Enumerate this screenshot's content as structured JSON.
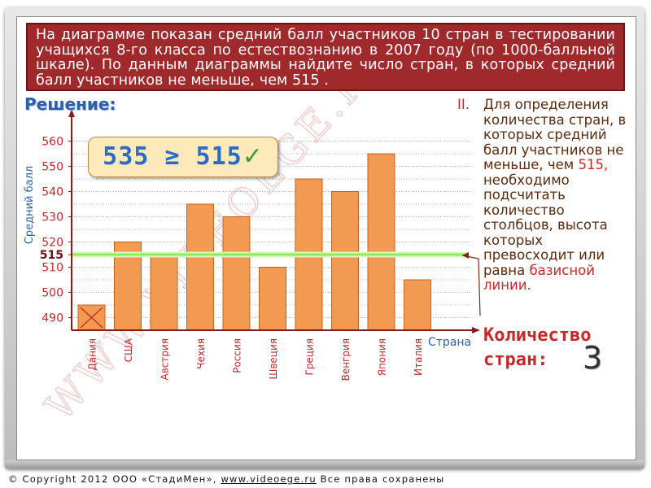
{
  "problem": {
    "text": "На диаграмме показан средний балл участников 10 стран в тестировании учащихся 8-го класса по естествознанию в 2007 году (по 1000-балльной шкале). По данным диаграммы найдите число стран, в которых средний балл участников не меньше, чем 515 ."
  },
  "solution": {
    "title": "Решение:",
    "callout_left": "535",
    "callout_op": "≥",
    "callout_right": "515",
    "callout_check": "✓"
  },
  "explanation": {
    "number": "II.",
    "part1": "Для определения количества стран, в которых средний балл участников не меньше, чем",
    "highlight1": "515,",
    "part2": "необходимо подсчитать количество столбцов, высота которых превосходит или равна",
    "highlight2": "базисной линии."
  },
  "result": {
    "label_line1": "Количество",
    "label_line2": "стран:",
    "value": "3"
  },
  "footer": {
    "copyright": "© Copyright 2012 ООО «СтадиМен»,",
    "link": "www.videoege.ru",
    "rights": "Все права сохранены"
  },
  "watermark": "WWW.VIDEOEGE.RU",
  "colors": {
    "bar": "#f39a52",
    "bar_stroke": "#c0621f",
    "baseline": "#8ee65a",
    "axis": "#8b1a1a",
    "tick_label": "#c62828",
    "problem_bg": "#a0292c"
  },
  "chart_data": {
    "type": "bar",
    "categories": [
      "Дания",
      "США",
      "Австрия",
      "Чехия",
      "Россия",
      "Швеция",
      "Греция",
      "Венгрия",
      "Япония",
      "Италия"
    ],
    "values": [
      495,
      520,
      515,
      535,
      530,
      510,
      545,
      540,
      555,
      505
    ],
    "xlabel": "Страна",
    "ylabel": "Средний балл",
    "ylim": [
      485,
      565
    ],
    "yticks": [
      490,
      500,
      510,
      515,
      520,
      530,
      540,
      550,
      560
    ],
    "baseline": 515,
    "crossed_out": [
      "Дания"
    ],
    "grid": true
  }
}
